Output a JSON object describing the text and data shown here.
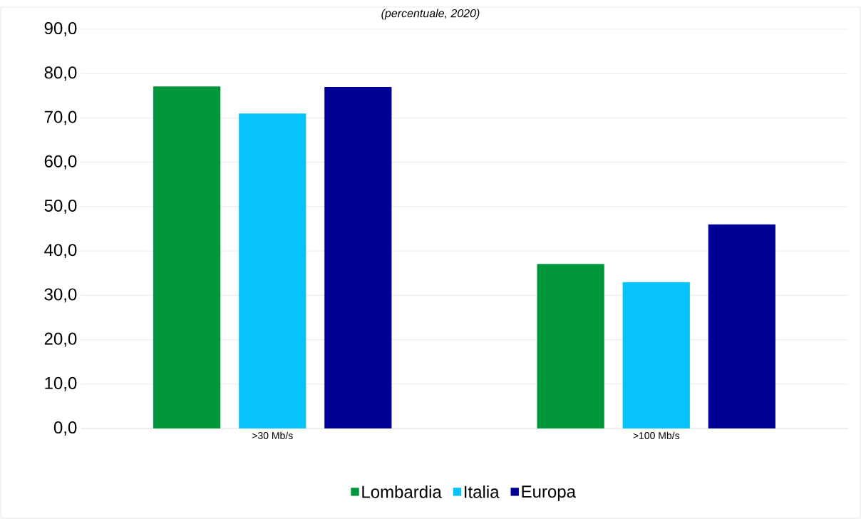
{
  "chart_data": {
    "type": "bar",
    "subtitle": "(percentuale, 2020)",
    "categories": [
      ">30 Mb/s",
      ">100 Mb/s"
    ],
    "series": [
      {
        "name": "Lombardia",
        "color": "#00973b",
        "values": [
          77.1,
          37.1
        ]
      },
      {
        "name": "Italia",
        "color": "#08c3fa",
        "values": [
          71.0,
          33.0
        ]
      },
      {
        "name": "Europa",
        "color": "#000096",
        "values": [
          77.0,
          46.0
        ]
      }
    ],
    "ylim": [
      0,
      90
    ],
    "yticks": [
      {
        "value": 0,
        "label": "0,0"
      },
      {
        "value": 10,
        "label": "10,0"
      },
      {
        "value": 20,
        "label": "20,0"
      },
      {
        "value": 30,
        "label": "30,0"
      },
      {
        "value": 40,
        "label": "40,0"
      },
      {
        "value": 50,
        "label": "50,0"
      },
      {
        "value": 60,
        "label": "60,0"
      },
      {
        "value": 70,
        "label": "70,0"
      },
      {
        "value": 80,
        "label": "80,0"
      },
      {
        "value": 90,
        "label": "90,0"
      }
    ],
    "grid": "y",
    "legend": "bottom"
  }
}
